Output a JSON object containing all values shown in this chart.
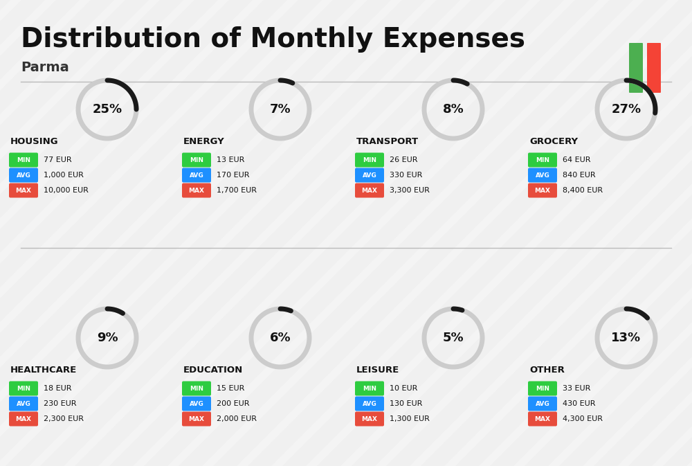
{
  "title": "Distribution of Monthly Expenses",
  "subtitle": "Parma",
  "bg_color": "#f0f0f0",
  "categories": [
    {
      "name": "HOUSING",
      "pct": 25,
      "min_val": "77 EUR",
      "avg_val": "1,000 EUR",
      "max_val": "10,000 EUR",
      "row": 0,
      "col": 0
    },
    {
      "name": "ENERGY",
      "pct": 7,
      "min_val": "13 EUR",
      "avg_val": "170 EUR",
      "max_val": "1,700 EUR",
      "row": 0,
      "col": 1
    },
    {
      "name": "TRANSPORT",
      "pct": 8,
      "min_val": "26 EUR",
      "avg_val": "330 EUR",
      "max_val": "3,300 EUR",
      "row": 0,
      "col": 2
    },
    {
      "name": "GROCERY",
      "pct": 27,
      "min_val": "64 EUR",
      "avg_val": "840 EUR",
      "max_val": "8,400 EUR",
      "row": 0,
      "col": 3
    },
    {
      "name": "HEALTHCARE",
      "pct": 9,
      "min_val": "18 EUR",
      "avg_val": "230 EUR",
      "max_val": "2,300 EUR",
      "row": 1,
      "col": 0
    },
    {
      "name": "EDUCATION",
      "pct": 6,
      "min_val": "15 EUR",
      "avg_val": "200 EUR",
      "max_val": "2,000 EUR",
      "row": 1,
      "col": 1
    },
    {
      "name": "LEISURE",
      "pct": 5,
      "min_val": "10 EUR",
      "avg_val": "130 EUR",
      "max_val": "1,300 EUR",
      "row": 1,
      "col": 2
    },
    {
      "name": "OTHER",
      "pct": 13,
      "min_val": "33 EUR",
      "avg_val": "430 EUR",
      "max_val": "4,300 EUR",
      "row": 1,
      "col": 3
    }
  ],
  "min_color": "#2ecc40",
  "avg_color": "#1e90ff",
  "max_color": "#e74c3c",
  "label_color": "#ffffff",
  "arc_color_filled": "#1a1a1a",
  "arc_color_empty": "#cccccc",
  "italy_green": "#4caf50",
  "italy_red": "#f44336"
}
